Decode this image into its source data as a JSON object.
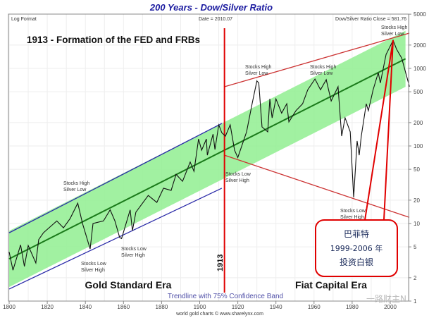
{
  "chart_data": {
    "type": "line",
    "title": "200 Years - Dow/Silver Ratio",
    "scale_note": "Log Format",
    "date_label": "Date = 2010.07",
    "close_label": "Dow/Silver Ratio Close = 581.76",
    "headline": "1913 - Formation of the FED and FRBs",
    "eras": [
      "Gold Standard Era",
      "Fiat Capital Era"
    ],
    "band_label": "Trendline with 75% Confidence Band",
    "marker_label": "1913",
    "source": "world gold charts © www.sharelynx.com",
    "y_scale": "log",
    "xlim": [
      1800,
      2010
    ],
    "ylim": [
      1,
      5000
    ],
    "x_ticks": [
      "1800",
      "1820",
      "1840",
      "1860",
      "1880",
      "1900",
      "1920",
      "1940",
      "1960",
      "1980",
      "2000"
    ],
    "y_ticks": [
      "5000",
      "2000",
      "1000",
      "500",
      "200",
      "100",
      "50",
      "20",
      "10",
      "5",
      "2",
      "1"
    ],
    "grid": true,
    "series": {
      "x": [
        1800,
        1802,
        1806,
        1808,
        1810,
        1814,
        1815.5,
        1818,
        1825,
        1828.5,
        1832,
        1836,
        1838.5,
        1842.5,
        1844,
        1849.5,
        1853,
        1855.5,
        1858,
        1859,
        1863.5,
        1864.7,
        1866.5,
        1873,
        1877.5,
        1881,
        1885,
        1887.6,
        1891,
        1895,
        1897,
        1899.4,
        1901,
        1903.5,
        1904,
        1907,
        1908,
        1910,
        1911.6,
        1913.5,
        1916,
        1918.3,
        1920,
        1924.6,
        1927.5,
        1930,
        1931,
        1932.7,
        1935.7,
        1936.8,
        1938,
        1940,
        1943,
        1945.7,
        1946.8,
        1950.5,
        1954,
        1956.7,
        1960.5,
        1963.4,
        1966.4,
        1969,
        1972.6,
        1974.5,
        1976.3,
        1979,
        1980.8,
        1982.6,
        1983.7,
        1984.8,
        1987.4,
        1988.5,
        1991,
        1993.7,
        1994.8,
        1997.8,
        2001.5,
        2003.3,
        2006,
        2008.5,
        2010.07
      ],
      "y": [
        4.3,
        2.5,
        5.3,
        2.8,
        5.2,
        3.1,
        6.2,
        7.6,
        10.8,
        8.8,
        11.6,
        18.3,
        10,
        4.7,
        10,
        10.8,
        15,
        10.8,
        6.6,
        6.4,
        15,
        8.1,
        14,
        23,
        18.7,
        28.5,
        26.7,
        43,
        35,
        62,
        47,
        123,
        88,
        123,
        76,
        142,
        90,
        187,
        148,
        134,
        187,
        88,
        71,
        152,
        350,
        690,
        650,
        176,
        152,
        405,
        230,
        405,
        265,
        350,
        204,
        285,
        350,
        530,
        730,
        530,
        715,
        380,
        580,
        134,
        230,
        152,
        21.7,
        116,
        76,
        134,
        350,
        285,
        530,
        880,
        650,
        1510,
        2300,
        1770,
        1360,
        810,
        581.76
      ]
    },
    "trendline": {
      "x": [
        1800,
        2008
      ],
      "y": [
        3.5,
        1330
      ],
      "band_factor": 2.3,
      "color": "#1a7a1a",
      "band_color": "#90ee90"
    },
    "gold_channel": {
      "upper": {
        "x": [
          1800,
          1911.6
        ],
        "y": [
          7.6,
          195
        ]
      },
      "lower": {
        "x": [
          1800,
          1911.6
        ],
        "y": [
          1.43,
          28.5
        ]
      },
      "color": "#2a2aa8"
    },
    "fiat_channel": {
      "upper": {
        "x": [
          1913,
          2010
        ],
        "y": [
          580,
          2850
        ]
      },
      "lower": {
        "x": [
          1913,
          2010
        ],
        "y": [
          76,
          12
        ]
      },
      "color": "#cc3333"
    },
    "annotations": [
      [
        "Stocks High",
        "Silver Low"
      ],
      [
        "Stocks Low",
        "Silver High"
      ],
      [
        "Stocks Low",
        "Silver High"
      ],
      [
        "Stocks Low",
        "Silver High"
      ],
      [
        "Stocks High",
        "Silver Low"
      ],
      [
        "Stocks High",
        "Silver Low"
      ],
      [
        "Stocks Low",
        "Silver High"
      ],
      [
        "Stocks High",
        "Silver Low"
      ]
    ],
    "callout": {
      "lines": [
        "巴菲特",
        "1999-2006 年",
        "投资白银"
      ],
      "color": "#e00000"
    }
  },
  "watermark": "一路财主N"
}
